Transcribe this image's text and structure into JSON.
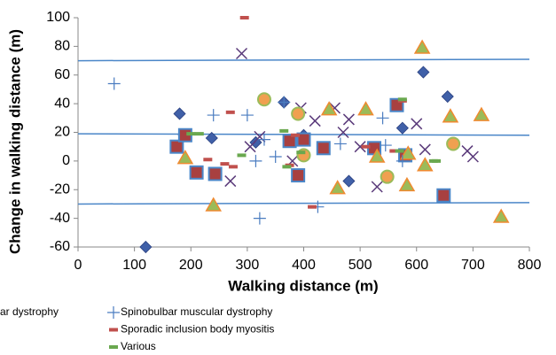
{
  "chart_data": {
    "type": "scatter",
    "xlabel": "Walking distance (m)",
    "ylabel": "Change in walking distance (m)",
    "xlim": [
      0,
      800
    ],
    "xticks": [
      0,
      100,
      200,
      300,
      400,
      500,
      600,
      700,
      800
    ],
    "ylim": [
      -60,
      100
    ],
    "yticks": [
      -60,
      -40,
      -20,
      0,
      20,
      40,
      60,
      80,
      100
    ],
    "reference_lines": {
      "color": "#4a86c8",
      "x": [
        0,
        800
      ],
      "y": [
        [
          70,
          71
        ],
        [
          19,
          18
        ],
        [
          -30,
          -29
        ]
      ]
    },
    "series": [
      {
        "marker": "diamond",
        "color": "#4060a8",
        "x": [
          180,
          188,
          237,
          315,
          365,
          400,
          480,
          575,
          612,
          655,
          120
        ],
        "values": [
          33,
          18,
          16,
          13,
          41,
          18,
          -14,
          23,
          62,
          45,
          -60
        ]
      },
      {
        "marker": "square",
        "color": "#a84040",
        "x": [
          175,
          190,
          210,
          243,
          375,
          400,
          435,
          390,
          525,
          565,
          580,
          648
        ],
        "values": [
          10,
          18,
          -8,
          -9,
          14,
          15,
          9,
          -10,
          9,
          39,
          4,
          -24
        ]
      },
      {
        "name": "ar dystrophy",
        "marker": "x",
        "color": "#5a3a7a",
        "x": [
          290,
          270,
          305,
          322,
          380,
          395,
          420,
          455,
          470,
          480,
          500,
          530,
          600,
          615,
          690,
          700
        ],
        "values": [
          75,
          -14,
          10,
          17,
          0,
          37,
          28,
          37,
          20,
          29,
          10,
          -18,
          26,
          8,
          7,
          3
        ]
      },
      {
        "marker": "triangle",
        "color": "#9bbb59",
        "x": [
          190,
          240,
          510,
          445,
          460,
          530,
          583,
          585,
          610,
          615,
          660,
          715,
          750
        ],
        "values": [
          2,
          -31,
          36,
          36,
          -19,
          3,
          -17,
          5,
          79,
          -3,
          31,
          32,
          -39
        ]
      },
      {
        "marker": "circle",
        "color": "#f0a050",
        "x": [
          330,
          390,
          400,
          548,
          665
        ],
        "values": [
          43,
          33,
          4,
          -11,
          12
        ]
      },
      {
        "name": "Spinobulbar muscular dystrophy",
        "marker": "plus",
        "color": "#4a7cc0",
        "x": [
          64,
          240,
          300,
          315,
          322,
          330,
          350,
          365,
          425,
          465,
          540,
          545,
          575
        ],
        "values": [
          54,
          32,
          32,
          0,
          -40,
          15,
          3,
          41,
          -32,
          12,
          30,
          11,
          0
        ]
      },
      {
        "name": "Sporadic inclusion body myositis",
        "marker": "dash",
        "color": "#c0504d",
        "x": [
          295,
          260,
          270,
          275,
          230,
          415,
          375,
          385,
          510,
          560,
          575
        ],
        "values": [
          100,
          -2,
          34,
          -4,
          1,
          -32,
          -3,
          18,
          10,
          7,
          42
        ]
      },
      {
        "name": "Various",
        "marker": "dash",
        "color": "#6aa84f",
        "x": [
          200,
          215,
          290,
          365,
          370,
          395,
          570,
          575,
          630,
          635
        ],
        "values": [
          19,
          19,
          4,
          21,
          -4,
          6,
          7,
          43,
          0,
          0
        ]
      }
    ]
  }
}
